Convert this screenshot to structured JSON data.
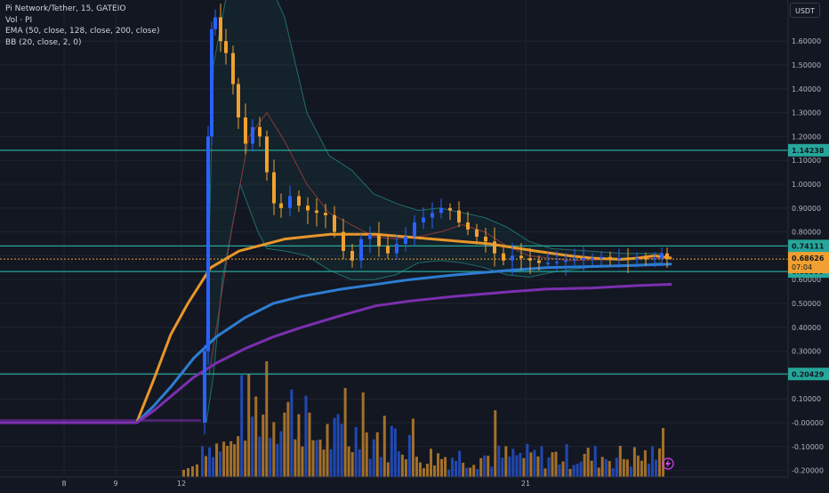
{
  "legend": {
    "title": "Pi Network/Tether, 15, GATEIO",
    "volume": "Vol · PI",
    "ema": "EMA (50, close, 128, close, 200, close)",
    "bb": "BB (20, close, 2, 0)"
  },
  "currency_button": "USDT",
  "colors": {
    "background": "#131722",
    "grid": "#1f2330",
    "up": "#2962ff",
    "down": "#f0a030",
    "ema50": "#e8962a",
    "ema128": "#2d7dd2",
    "ema200": "#7b2fb0",
    "bb_band": "#26a69a",
    "bb_basis": "#8a3a3a",
    "hline": "#26a69a",
    "text": "#b2b5be"
  },
  "chart_data": {
    "type": "candlestick",
    "title": "Pi Network/Tether, 15, GATEIO",
    "x_axis": {
      "ticks": [
        "8",
        "9",
        "12",
        "21"
      ]
    },
    "y_axis": {
      "range": [
        -0.2,
        1.7
      ],
      "ticks": [
        "1.60000",
        "1.50000",
        "1.40000",
        "1.30000",
        "1.20000",
        "1.10000",
        "1.00000",
        "0.90000",
        "0.80000",
        "0.70000",
        "0.60000",
        "0.50000",
        "0.40000",
        "0.30000",
        "0.20000",
        "0.10000",
        "-0.00000",
        "-0.10000",
        "-0.20000"
      ],
      "tick_values": [
        1.6,
        1.5,
        1.4,
        1.3,
        1.2,
        1.1,
        1.0,
        0.9,
        0.8,
        0.7,
        0.6,
        0.5,
        0.4,
        0.3,
        0.2,
        0.1,
        0.0,
        -0.1,
        -0.2
      ]
    },
    "horizontal_levels": [
      {
        "value": 1.14238,
        "label": "1.14238"
      },
      {
        "value": 0.74111,
        "label": "0.74111"
      },
      {
        "value": 0.63399,
        "label": "0.63399"
      },
      {
        "value": 0.20429,
        "label": "0.20429"
      }
    ],
    "last_price": {
      "value": 0.68626,
      "label": "0.68626",
      "countdown": "07:04"
    },
    "grid": true,
    "series": [
      {
        "name": "EMA 50",
        "points": [
          [
            0.24,
            0.0
          ],
          [
            0.27,
            0.18
          ],
          [
            0.3,
            0.37
          ],
          [
            0.33,
            0.5
          ],
          [
            0.37,
            0.65
          ],
          [
            0.42,
            0.72
          ],
          [
            0.5,
            0.77
          ],
          [
            0.58,
            0.79
          ],
          [
            0.66,
            0.79
          ],
          [
            0.76,
            0.77
          ],
          [
            0.86,
            0.75
          ],
          [
            0.94,
            0.72
          ],
          [
            1.0,
            0.7
          ],
          [
            1.04,
            0.69
          ],
          [
            1.09,
            0.685
          ],
          [
            1.12,
            0.69
          ],
          [
            1.15,
            0.7
          ],
          [
            1.18,
            0.69
          ]
        ]
      },
      {
        "name": "EMA 128",
        "points": [
          [
            0.24,
            0.0
          ],
          [
            0.27,
            0.07
          ],
          [
            0.3,
            0.15
          ],
          [
            0.34,
            0.27
          ],
          [
            0.38,
            0.36
          ],
          [
            0.43,
            0.44
          ],
          [
            0.48,
            0.5
          ],
          [
            0.53,
            0.53
          ],
          [
            0.6,
            0.56
          ],
          [
            0.66,
            0.58
          ],
          [
            0.72,
            0.6
          ],
          [
            0.8,
            0.62
          ],
          [
            0.9,
            0.64
          ],
          [
            0.96,
            0.65
          ],
          [
            1.04,
            0.655
          ],
          [
            1.12,
            0.66
          ],
          [
            1.18,
            0.665
          ]
        ]
      },
      {
        "name": "EMA 200",
        "points": [
          [
            0.0,
            0.0
          ],
          [
            0.24,
            0.0
          ],
          [
            0.27,
            0.05
          ],
          [
            0.3,
            0.11
          ],
          [
            0.34,
            0.19
          ],
          [
            0.38,
            0.25
          ],
          [
            0.43,
            0.31
          ],
          [
            0.48,
            0.36
          ],
          [
            0.53,
            0.4
          ],
          [
            0.6,
            0.45
          ],
          [
            0.66,
            0.49
          ],
          [
            0.72,
            0.51
          ],
          [
            0.8,
            0.53
          ],
          [
            0.9,
            0.55
          ],
          [
            0.96,
            0.56
          ],
          [
            1.04,
            0.565
          ],
          [
            1.12,
            0.575
          ],
          [
            1.18,
            0.58
          ]
        ]
      }
    ]
  }
}
